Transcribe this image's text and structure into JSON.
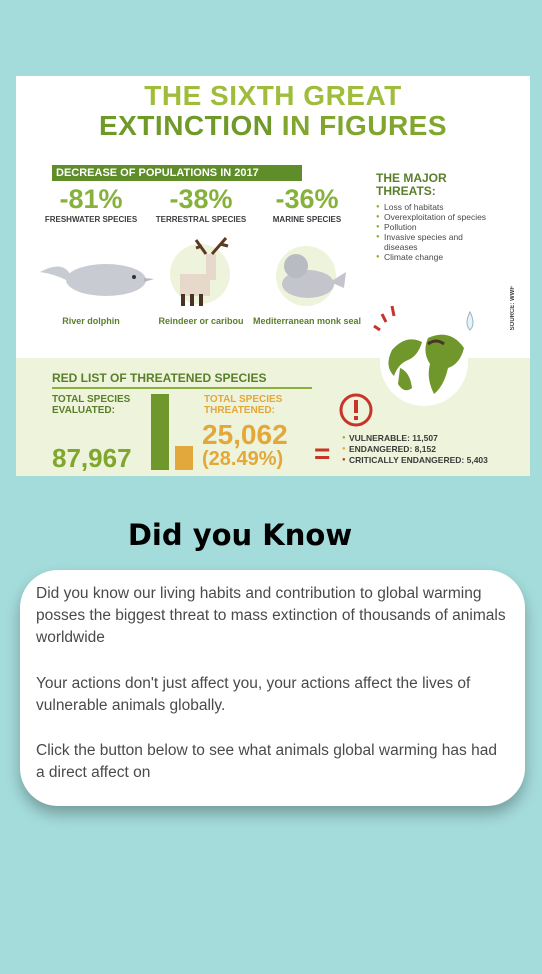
{
  "infographic": {
    "title_line1": "THE SIXTH GREAT",
    "title_line2_a": "EXTINCTION",
    "title_line2_b": " IN FIGURES",
    "populations_header": "DECREASE OF POPULATIONS IN 2017",
    "stats": [
      {
        "value": "-81%",
        "label": "FRESHWATER SPECIES",
        "animal": "River dolphin"
      },
      {
        "value": "-38%",
        "label": "TERRESTRAL SPECIES",
        "animal": "Reindeer or caribou"
      },
      {
        "value": "-36%",
        "label": "MARINE SPECIES",
        "animal": "Mediterranean monk seal"
      }
    ],
    "threats_title": "THE MAJOR THREATS:",
    "threats": [
      "Loss of habitats",
      "Overexploitation of species",
      "Pollution",
      "Invasive species and diseases",
      "Climate change"
    ],
    "source": "SOURCE: WWF",
    "red_list_title": "RED LIST OF THREATENED SPECIES",
    "total_label": "TOTAL SPECIES EVALUATED:",
    "total_value": "87,967",
    "threatened_label": "TOTAL SPECIES THREATENED:",
    "threatened_value": "25,062",
    "threatened_pct": "(28.49%)",
    "equals": "=",
    "categories": [
      {
        "label": "VULNERABLE:",
        "value": "11,507"
      },
      {
        "label": "ENDANGERED:",
        "value": "8,152"
      },
      {
        "label": "CRITICALLY ENDANGERED:",
        "value": "5,403"
      }
    ]
  },
  "heading": "Did you Know",
  "card": {
    "paragraph1": "Did you know our living habits and contribution to global warming posses the biggest threat to mass extinction of thousands of animals worldwide",
    "paragraph2": "Your actions don't just affect you, your actions affect the lives of vulnerable animals globally.",
    "paragraph3": "Click the button below to see what animals global warming has had a direct affect on"
  }
}
